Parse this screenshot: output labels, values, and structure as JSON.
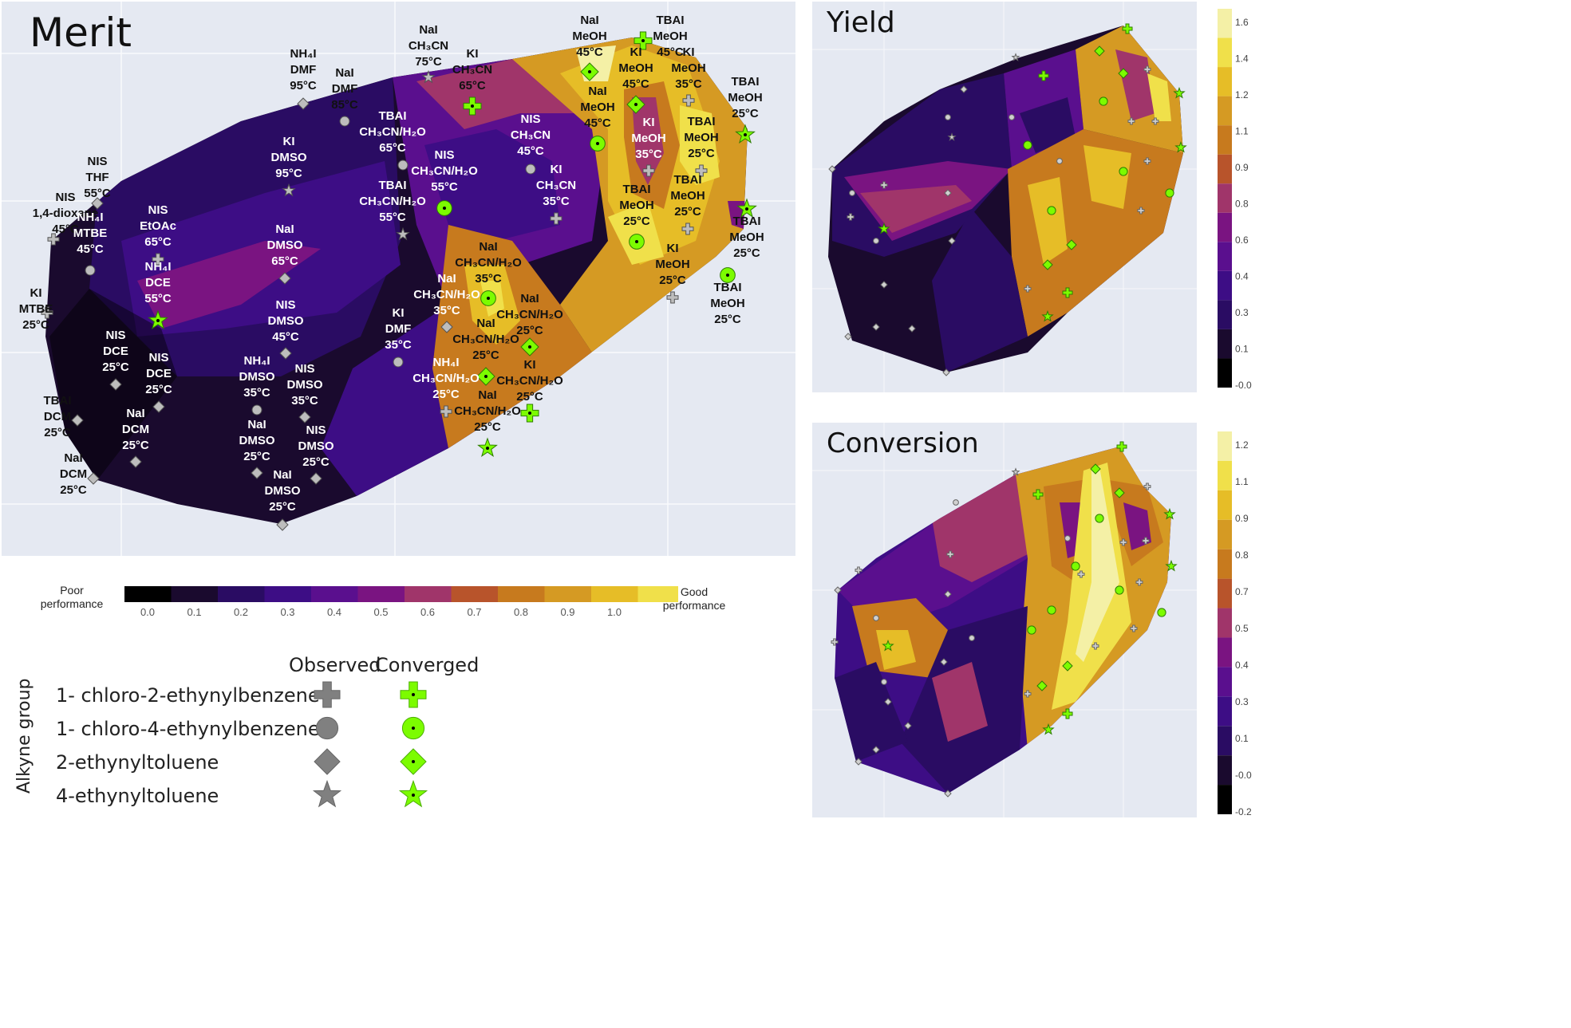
{
  "panels": {
    "merit_title": "Merit",
    "yield_title": "Yield",
    "conversion_title": "Conversion"
  },
  "colorbar": {
    "poor_label": "Poor\nperformance",
    "good_label": "Good\nperformance",
    "colors": [
      "#0d0887",
      "#000000",
      "#1a0a2e",
      "#2a0c63",
      "#3d0d85",
      "#5a0f8e",
      "#7a1481",
      "#a0356a",
      "#b8542b",
      "#c77a1e",
      "#d59a23",
      "#e6bd27",
      "#f0e04a",
      "#f4f0a6"
    ]
  },
  "legend": {
    "axis_label": "Alkyne group",
    "observed_header": "Observed",
    "converged_header": "Converged",
    "rows": [
      {
        "label": "1- chloro-2-ethynylbenzene",
        "shape": "cross"
      },
      {
        "label": "1- chloro-4-ethynylbenzene",
        "shape": "circle"
      },
      {
        "label": "2-ethynyltoluene",
        "shape": "diamond"
      },
      {
        "label": "4-ethynyltoluene",
        "shape": "star"
      }
    ],
    "observed_color": "#808080",
    "converged_color": "#7cfc00"
  },
  "chart_data": [
    {
      "type": "contour",
      "title": "Merit",
      "colorbar_ticks": [
        "0.0",
        "0.1",
        "0.2",
        "0.3",
        "0.4",
        "0.5",
        "0.6",
        "0.7",
        "0.8",
        "0.9",
        "1.0"
      ],
      "points": [
        {
          "label": "NIS\n1,4-dioxane\n45°C",
          "shape": "cross",
          "converged": false
        },
        {
          "label": "NIS\nTHF\n55°C",
          "shape": "diamond",
          "converged": false
        },
        {
          "label": "KI\nMTBE\n25°C",
          "shape": "cross",
          "converged": false
        },
        {
          "label": "NH₄I\nMTBE\n45°C",
          "shape": "circle",
          "converged": false
        },
        {
          "label": "NIS\nEtOAc\n65°C",
          "shape": "cross",
          "converged": false
        },
        {
          "label": "NH₄I\nDCE\n55°C",
          "shape": "star",
          "converged": true
        },
        {
          "label": "NIS\nDCE\n25°C",
          "shape": "diamond",
          "converged": false
        },
        {
          "label": "NIS\nDCE\n25°C",
          "shape": "diamond",
          "converged": false
        },
        {
          "label": "TBAI\nDCM\n25°C",
          "shape": "diamond",
          "converged": false
        },
        {
          "label": "NaI\nDCM\n25°C",
          "shape": "diamond",
          "converged": false
        },
        {
          "label": "NaI\nDCM\n25°C",
          "shape": "diamond",
          "converged": false
        },
        {
          "label": "NH₄I\nDMF\n95°C",
          "shape": "diamond",
          "converged": false
        },
        {
          "label": "NaI\nDMF\n85°C",
          "shape": "circle",
          "converged": false
        },
        {
          "label": "KI\nDMSO\n95°C",
          "shape": "star",
          "converged": false
        },
        {
          "label": "NaI\nDMSO\n65°C",
          "shape": "diamond",
          "converged": false
        },
        {
          "label": "NIS\nDMSO\n45°C",
          "shape": "diamond",
          "converged": false
        },
        {
          "label": "NH₄I\nDMSO\n35°C",
          "shape": "circle",
          "converged": false
        },
        {
          "label": "NIS\nDMSO\n35°C",
          "shape": "diamond",
          "converged": false
        },
        {
          "label": "NaI\nDMSO\n25°C",
          "shape": "diamond",
          "converged": false
        },
        {
          "label": "NIS\nDMSO\n25°C",
          "shape": "diamond",
          "converged": false
        },
        {
          "label": "NaI\nDMSO\n25°C",
          "shape": "diamond",
          "converged": false
        },
        {
          "label": "NaI\nCH₃CN\n75°C",
          "shape": "star",
          "converged": false
        },
        {
          "label": "KI\nCH₃CN\n65°C",
          "shape": "cross",
          "converged": true
        },
        {
          "label": "TBAI\nCH₃CN/H₂O\n65°C",
          "shape": "circle",
          "converged": false
        },
        {
          "label": "NIS\nCH₃CN/H₂O\n55°C",
          "shape": "circle",
          "converged": true
        },
        {
          "label": "TBAI\nCH₃CN/H₂O\n55°C",
          "shape": "star",
          "converged": false
        },
        {
          "label": "NIS\nCH₃CN\n45°C",
          "shape": "circle",
          "converged": false
        },
        {
          "label": "KI\nCH₃CN\n35°C",
          "shape": "cross",
          "converged": false
        },
        {
          "label": "KI\nDMF\n35°C",
          "shape": "circle",
          "converged": false
        },
        {
          "label": "NaI\nCH₃CN/H₂O\n35°C",
          "shape": "circle",
          "converged": true
        },
        {
          "label": "NaI\nCH₃CN/H₂O\n35°C",
          "shape": "diamond",
          "converged": false
        },
        {
          "label": "NaI\nCH₃CN/H₂O\n25°C",
          "shape": "diamond",
          "converged": true
        },
        {
          "label": "NaI\nCH₃CN/H₂O\n25°C",
          "shape": "diamond",
          "converged": true
        },
        {
          "label": "NH₄I\nCH₃CN/H₂O\n25°C",
          "shape": "cross",
          "converged": false
        },
        {
          "label": "KI\nCH₃CN/H₂O\n25°C",
          "shape": "cross",
          "converged": true
        },
        {
          "label": "NaI\nCH₃CN/H₂O\n25°C",
          "shape": "star",
          "converged": true
        },
        {
          "label": "NaI\nMeOH\n45°C",
          "shape": "diamond",
          "converged": true
        },
        {
          "label": "TBAI\nMeOH\n45°C",
          "shape": "cross",
          "converged": true
        },
        {
          "label": "KI\nMeOH\n45°C",
          "shape": "diamond",
          "converged": true
        },
        {
          "label": "KI\nMeOH\n35°C",
          "shape": "cross",
          "converged": false
        },
        {
          "label": "NaI\nMeOH\n45°C",
          "shape": "circle",
          "converged": true
        },
        {
          "label": "KI\nMeOH\n35°C",
          "shape": "cross",
          "converged": false
        },
        {
          "label": "TBAI\nMeOH\n25°C",
          "shape": "star",
          "converged": true
        },
        {
          "label": "TBAI\nMeOH\n25°C",
          "shape": "cross",
          "converged": false
        },
        {
          "label": "TBAI\nMeOH\n25°C",
          "shape": "circle",
          "converged": true
        },
        {
          "label": "TBAI\nMeOH\n25°C",
          "shape": "cross",
          "converged": false
        },
        {
          "label": "TBAI\nMeOH\n25°C",
          "shape": "star",
          "converged": true
        },
        {
          "label": "KI\nMeOH\n25°C",
          "shape": "cross",
          "converged": false
        },
        {
          "label": "TBAI\nMeOH\n25°C",
          "shape": "circle",
          "converged": true
        }
      ]
    },
    {
      "type": "contour",
      "title": "Yield",
      "colorbar_ticks": [
        "1.6",
        "1.4",
        "1.2",
        "1.1",
        "0.9",
        "0.8",
        "0.6",
        "0.4",
        "0.3",
        "0.1",
        "-0.0"
      ]
    },
    {
      "type": "contour",
      "title": "Conversion",
      "colorbar_ticks": [
        "1.2",
        "1.1",
        "0.9",
        "0.8",
        "0.7",
        "0.5",
        "0.4",
        "0.3",
        "0.1",
        "-0.0",
        "-0.2"
      ]
    }
  ]
}
